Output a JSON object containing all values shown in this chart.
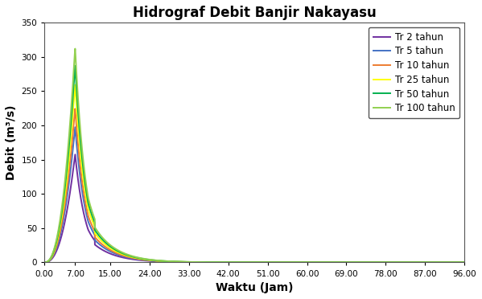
{
  "title": "Hidrograf Debit Banjir Nakayasu",
  "xlabel": "Waktu (Jam)",
  "ylabel": "Debit (m³/s)",
  "xlim": [
    0,
    96
  ],
  "ylim": [
    0,
    350
  ],
  "xticks": [
    0.0,
    7.0,
    15.0,
    24.0,
    33.0,
    42.0,
    51.0,
    60.0,
    69.0,
    78.0,
    87.0,
    96.0
  ],
  "xticklabels": [
    "0.00",
    "7.00",
    "15.00",
    "24.00",
    "33.00",
    "42.00",
    "51.00",
    "60.00",
    "69.00",
    "78.00",
    "87.00",
    "96.00"
  ],
  "yticks": [
    0,
    50,
    100,
    150,
    200,
    250,
    300,
    350
  ],
  "series": [
    {
      "label": "Tr 2 tahun",
      "color": "#7030A0",
      "peak": 158,
      "tp": 7.0,
      "T03": 3.0
    },
    {
      "label": "Tr 5 tahun",
      "color": "#4472C4",
      "peak": 198,
      "tp": 7.0,
      "T03": 3.0
    },
    {
      "label": "Tr 10 tahun",
      "color": "#ED7D31",
      "peak": 225,
      "tp": 7.0,
      "T03": 3.0
    },
    {
      "label": "Tr 25 tahun",
      "color": "#FFFF00",
      "peak": 260,
      "tp": 7.0,
      "T03": 3.0
    },
    {
      "label": "Tr 50 tahun",
      "color": "#00B050",
      "peak": 288,
      "tp": 7.0,
      "T03": 3.0
    },
    {
      "label": "Tr 100 tahun",
      "color": "#92D050",
      "peak": 313,
      "tp": 7.0,
      "T03": 3.0
    }
  ],
  "background_color": "#FFFFFF",
  "title_fontsize": 12,
  "axis_label_fontsize": 10,
  "legend_fontsize": 8.5
}
